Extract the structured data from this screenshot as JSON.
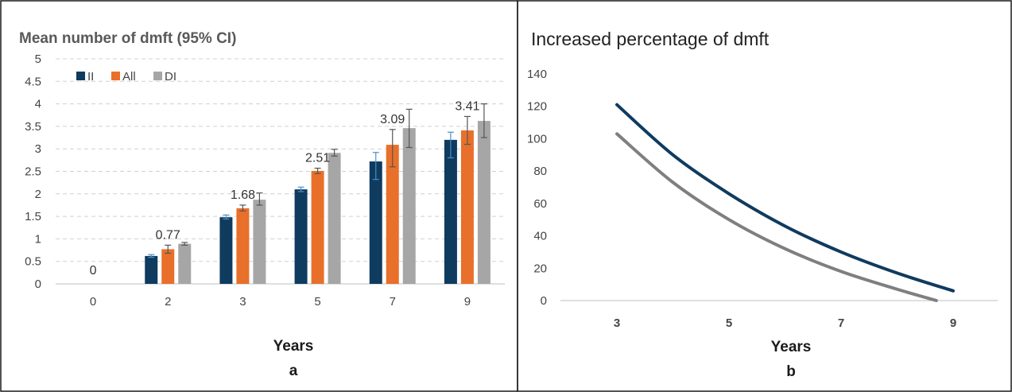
{
  "chart_data": [
    {
      "type": "bar",
      "title": "Mean number of dmft (95% CI)",
      "xlabel": "Years",
      "panel_label": "a",
      "categories": [
        "0",
        "2",
        "3",
        "5",
        "7",
        "9"
      ],
      "ylim": [
        0,
        5
      ],
      "yticks": [
        "0",
        "0.5",
        "1",
        "1.5",
        "2",
        "2.5",
        "3",
        "3.5",
        "4",
        "4.5",
        "5"
      ],
      "grid": true,
      "legend_position": "top-left",
      "series": [
        {
          "name": "II",
          "color": "#0f3b5f",
          "values": [
            0,
            0.62,
            1.48,
            2.1,
            2.72,
            3.2
          ],
          "ci_low": [
            0,
            0.59,
            1.44,
            2.05,
            2.32,
            2.8
          ],
          "ci_high": [
            0,
            0.65,
            1.53,
            2.15,
            2.92,
            3.37
          ]
        },
        {
          "name": "All",
          "color": "#e8702a",
          "values": [
            0,
            0.77,
            1.68,
            2.51,
            3.09,
            3.41
          ],
          "ci_low": [
            0,
            0.68,
            1.62,
            2.45,
            2.6,
            3.1
          ],
          "ci_high": [
            0,
            0.86,
            1.75,
            2.57,
            3.43,
            3.72
          ]
        },
        {
          "name": "DI",
          "color": "#a6a6a6",
          "values": [
            0,
            0.89,
            1.87,
            2.91,
            3.46,
            3.62
          ],
          "ci_low": [
            0,
            0.86,
            1.75,
            2.84,
            3.03,
            3.25
          ],
          "ci_high": [
            0,
            0.92,
            2.02,
            2.99,
            3.88,
            4.0
          ]
        }
      ],
      "data_labels": [
        {
          "category": "0",
          "text": "0"
        },
        {
          "category": "2",
          "text": "0.77"
        },
        {
          "category": "3",
          "text": "1.68"
        },
        {
          "category": "5",
          "text": "2.51"
        },
        {
          "category": "7",
          "text": "3.09"
        },
        {
          "category": "9",
          "text": "3.41"
        }
      ]
    },
    {
      "type": "line",
      "title": "Increased percentage of dmft",
      "xlabel": "Years",
      "panel_label": "b",
      "xticks": [
        "3",
        "5",
        "7",
        "9"
      ],
      "xlim": [
        3,
        9
      ],
      "ylim": [
        0,
        140
      ],
      "yticks": [
        "0",
        "20",
        "40",
        "60",
        "80",
        "100",
        "120",
        "140"
      ],
      "grid": false,
      "series": [
        {
          "color": "#0f3b5f",
          "x": [
            3,
            4,
            5,
            6,
            7,
            8,
            9
          ],
          "y": [
            121,
            90,
            66,
            46,
            30,
            17,
            6
          ]
        },
        {
          "color": "#7f7f7f",
          "x": [
            3,
            4,
            5,
            6,
            7,
            8,
            8.7
          ],
          "y": [
            103,
            73,
            50,
            32,
            18,
            7,
            0
          ]
        }
      ]
    }
  ]
}
